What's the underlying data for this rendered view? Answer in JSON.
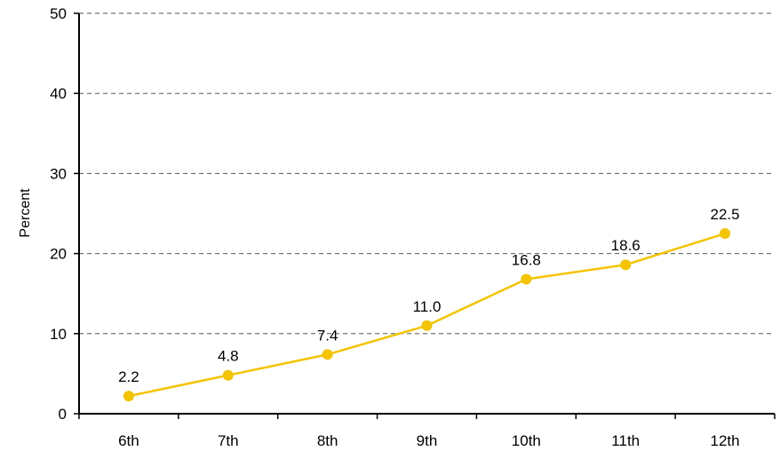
{
  "chart_data": {
    "type": "line",
    "title": "",
    "xlabel": "",
    "ylabel": "Percent",
    "categories": [
      "6th",
      "7th",
      "8th",
      "9th",
      "10th",
      "11th",
      "12th"
    ],
    "series": [
      {
        "values": [
          2.2,
          4.8,
          7.4,
          11.0,
          16.8,
          18.6,
          22.5
        ],
        "color": "#F5C400"
      }
    ],
    "value_labels": [
      "2.2",
      "4.8",
      "7.4",
      "11.0",
      "16.8",
      "18.6",
      "22.5"
    ],
    "ylim": [
      0,
      50
    ],
    "yticks": [
      "0",
      "10",
      "20",
      "30",
      "40",
      "50"
    ],
    "grid": true,
    "legend": "none"
  }
}
